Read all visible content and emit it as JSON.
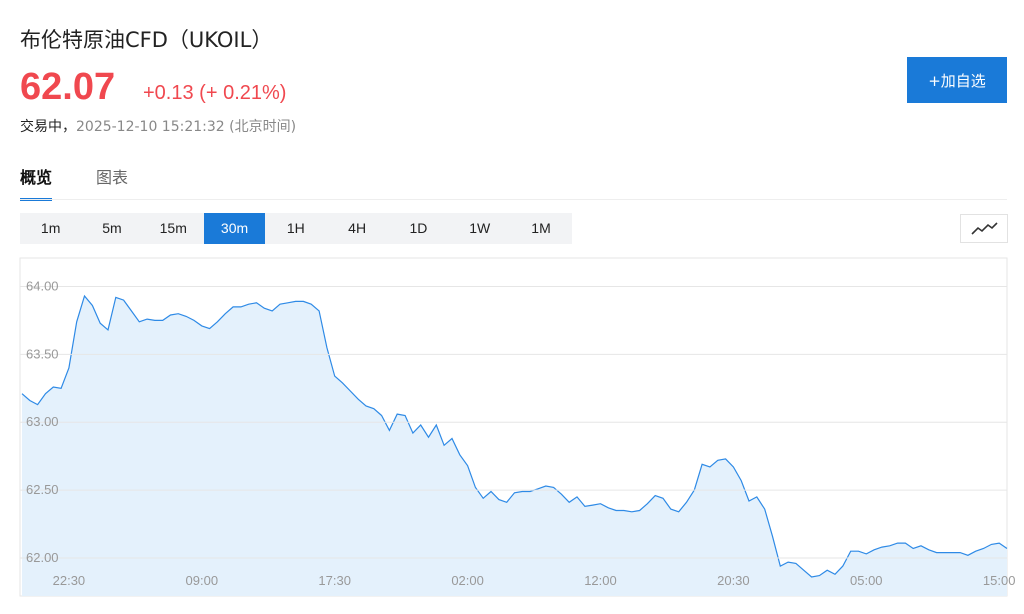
{
  "header": {
    "title": "布伦特原油CFD（UKOIL）",
    "price": "62.07",
    "change": "+0.13",
    "change_pct": "(+ 0.21%)",
    "status": "交易中，",
    "timestamp": "2025-12-10 15:21:32 (北京时间)"
  },
  "watch_button": "+加自选",
  "tabs": [
    "概览",
    "图表"
  ],
  "active_tab": 0,
  "intervals": [
    "1m",
    "5m",
    "15m",
    "30m",
    "1H",
    "4H",
    "1D",
    "1W",
    "1M"
  ],
  "active_interval": 3,
  "chart_data": {
    "type": "area",
    "color": "#2e8ae6",
    "fill": "#e4f1fc",
    "grid": true,
    "categories": [
      null,
      null,
      null,
      null,
      null,
      null,
      "22:30",
      null,
      null,
      null,
      null,
      null,
      null,
      null,
      null,
      null,
      null,
      null,
      null,
      null,
      null,
      null,
      null,
      "09:00",
      null,
      null,
      null,
      null,
      null,
      null,
      null,
      null,
      null,
      null,
      null,
      null,
      null,
      null,
      null,
      null,
      "17:30",
      null,
      null,
      null,
      null,
      null,
      null,
      null,
      null,
      null,
      null,
      null,
      null,
      null,
      null,
      null,
      null,
      "02:00",
      null,
      null,
      null,
      null,
      null,
      null,
      null,
      null,
      null,
      null,
      null,
      null,
      null,
      null,
      null,
      null,
      "12:00",
      null,
      null,
      null,
      null,
      null,
      null,
      null,
      null,
      null,
      null,
      null,
      null,
      null,
      null,
      null,
      null,
      "20:30",
      null,
      null,
      null,
      null,
      null,
      null,
      null,
      null,
      null,
      null,
      null,
      null,
      null,
      null,
      null,
      null,
      "05:00",
      null,
      null,
      null,
      null,
      null,
      null,
      null,
      null,
      null,
      null,
      null,
      null,
      null,
      null,
      null,
      null,
      "15:00",
      null
    ],
    "values": [
      63.21,
      63.16,
      63.13,
      63.21,
      63.26,
      63.25,
      63.4,
      63.74,
      63.93,
      63.86,
      63.73,
      63.68,
      63.92,
      63.9,
      63.82,
      63.74,
      63.76,
      63.75,
      63.75,
      63.79,
      63.8,
      63.78,
      63.75,
      63.71,
      63.69,
      63.74,
      63.8,
      63.85,
      63.85,
      63.87,
      63.88,
      63.84,
      63.82,
      63.87,
      63.88,
      63.89,
      63.89,
      63.87,
      63.82,
      63.55,
      63.34,
      63.29,
      63.23,
      63.17,
      63.12,
      63.1,
      63.05,
      62.94,
      63.06,
      63.05,
      62.92,
      62.98,
      62.89,
      62.98,
      62.83,
      62.88,
      62.76,
      62.68,
      62.52,
      62.44,
      62.49,
      62.43,
      62.41,
      62.48,
      62.49,
      62.49,
      62.51,
      62.53,
      62.52,
      62.47,
      62.41,
      62.45,
      62.38,
      62.39,
      62.4,
      62.37,
      62.35,
      62.35,
      62.34,
      62.35,
      62.4,
      62.46,
      62.44,
      62.36,
      62.34,
      62.41,
      62.5,
      62.69,
      62.67,
      62.72,
      62.73,
      62.67,
      62.57,
      62.42,
      62.45,
      62.36,
      62.16,
      61.94,
      61.97,
      61.96,
      61.91,
      61.86,
      61.87,
      61.91,
      61.88,
      61.94,
      62.05,
      62.05,
      62.03,
      62.06,
      62.08,
      62.09,
      62.11,
      62.11,
      62.07,
      62.09,
      62.06,
      62.04,
      62.04,
      62.04,
      62.04,
      62.02,
      62.05,
      62.07,
      62.1,
      62.11,
      62.07
    ],
    "ylim": [
      61.72,
      64.21
    ],
    "yticks": [
      {
        "value": 62,
        "label": "62.00"
      },
      {
        "value": 62.5,
        "label": "62.50"
      },
      {
        "value": 63,
        "label": "63.00"
      },
      {
        "value": 63.5,
        "label": "63.50"
      },
      {
        "value": 64,
        "label": "64.00"
      }
    ]
  }
}
